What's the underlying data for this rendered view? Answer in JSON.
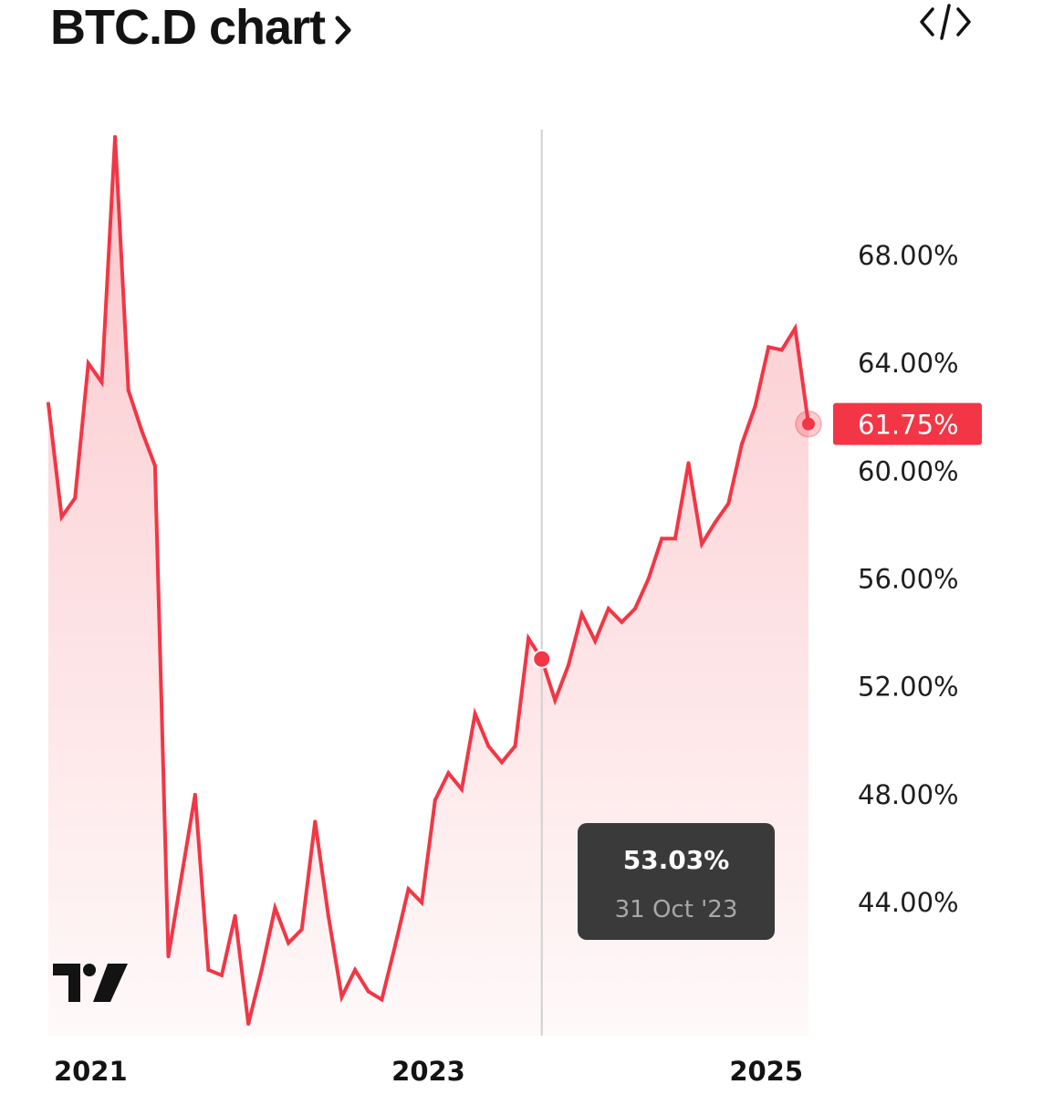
{
  "header": {
    "title": "BTC.D chart"
  },
  "icons": {
    "title_arrow": "chevron-right-icon",
    "embed": "code-embed-icon",
    "logo": "tradingview-logo"
  },
  "colors": {
    "line": "#f23645",
    "fill": "#f23645",
    "tooltip_bg": "#3a3a3a",
    "crosshair": "#d0d0d0"
  },
  "chart_data": {
    "type": "area",
    "series": [
      {
        "values": [
          62.5,
          58.3,
          59.0,
          64.0,
          63.3,
          72.4,
          63.0,
          61.5,
          60.2,
          42.0,
          45.0,
          48.0,
          41.5,
          41.3,
          43.5,
          39.5,
          41.5,
          43.8,
          42.5,
          43.0,
          47.0,
          43.5,
          40.5,
          41.5,
          40.7,
          40.4,
          42.4,
          44.5,
          44.0,
          47.8,
          48.8,
          48.2,
          51.0,
          49.8,
          49.2,
          49.8,
          53.8,
          53.03,
          51.5,
          52.8,
          54.7,
          53.7,
          54.9,
          54.4,
          54.9,
          56.0,
          57.5,
          57.5,
          60.3,
          57.3,
          58.1,
          58.8,
          61.0,
          62.4,
          64.6,
          64.5,
          65.3,
          61.75
        ]
      }
    ],
    "x_start": "Oct 2020",
    "x_end": "Apr 2025",
    "x_ticks": [
      "2021",
      "2023",
      "2025"
    ],
    "y_ticks": [
      "68.00%",
      "64.00%",
      "60.00%",
      "56.00%",
      "52.00%",
      "48.00%",
      "44.00%"
    ],
    "y_tick_values": [
      68,
      64,
      60,
      56,
      52,
      48,
      44
    ],
    "ylim": [
      39.5,
      72.4
    ],
    "last_value": 61.75,
    "last_label": "61.75%",
    "tooltip": {
      "value": "53.03%",
      "date": "31 Oct '23",
      "point": 37
    }
  }
}
